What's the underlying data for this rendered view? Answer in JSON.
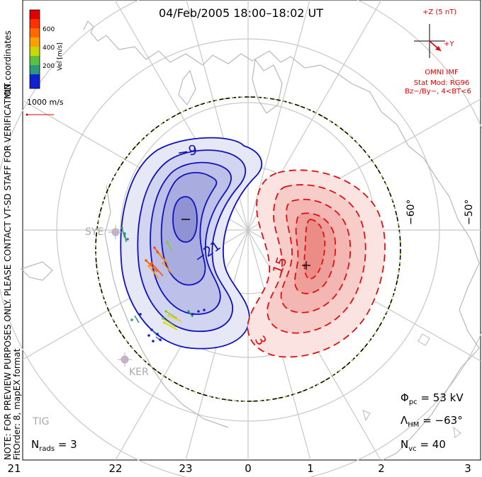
{
  "title": "04/Feb/2005  18:00–18:02 UT",
  "coordinates_label": "MLT coordinates",
  "preview_note": "NOTE: FOR PREVIEW PURPOSES ONLY. PLEASE CONTACT VT-SD STAFF FOR VERIFICATION.",
  "fit_label": "FitOrder: 8, mapEX format",
  "velocity_scale": {
    "title": "Vel [m/s]",
    "ticks": [
      "600",
      "400",
      "200"
    ],
    "colors": [
      "#e00000",
      "#ff5000",
      "#ff9a00",
      "#f0d000",
      "#80d020",
      "#2a9a7a",
      "#3a70b0",
      "#1020d0"
    ],
    "reference": "1000 m/s"
  },
  "imf": {
    "bz_label": "+Z (5 nT)",
    "by_label": "+Y",
    "source": "OMNI IMF",
    "stat_model": "Stat Mod: RG96",
    "condition": "Bz−/By−, 4<BT<6"
  },
  "stats": {
    "phi_symbol": "Φ",
    "phi_sub": "pc",
    "phi_value": "= 53 kV",
    "lambda_symbol": "Λ",
    "lambda_sub": "HM",
    "lambda_value": "= −63°",
    "nvc_symbol": "N",
    "nvc_sub": "vc",
    "nvc_value": "= 40",
    "nrads_symbol": "N",
    "nrads_sub": "rads",
    "nrads_value": "= 3"
  },
  "latitude_labels": [
    "−60°",
    "−50°"
  ],
  "mlt_labels": [
    "21",
    "22",
    "23",
    "0",
    "1",
    "2",
    "3"
  ],
  "stations": [
    "SYE",
    "KER",
    "TIG"
  ],
  "contour_labels": {
    "dusk": [
      "−9",
      "−21"
    ],
    "dawn": [
      "15",
      "3"
    ]
  },
  "colors": {
    "dusk_cell": "#1010c0",
    "dawn_cell": "#e01010",
    "grid": "#c8c8c8",
    "coast": "#b8b8b8",
    "boundary_green": "#88cc22"
  }
}
